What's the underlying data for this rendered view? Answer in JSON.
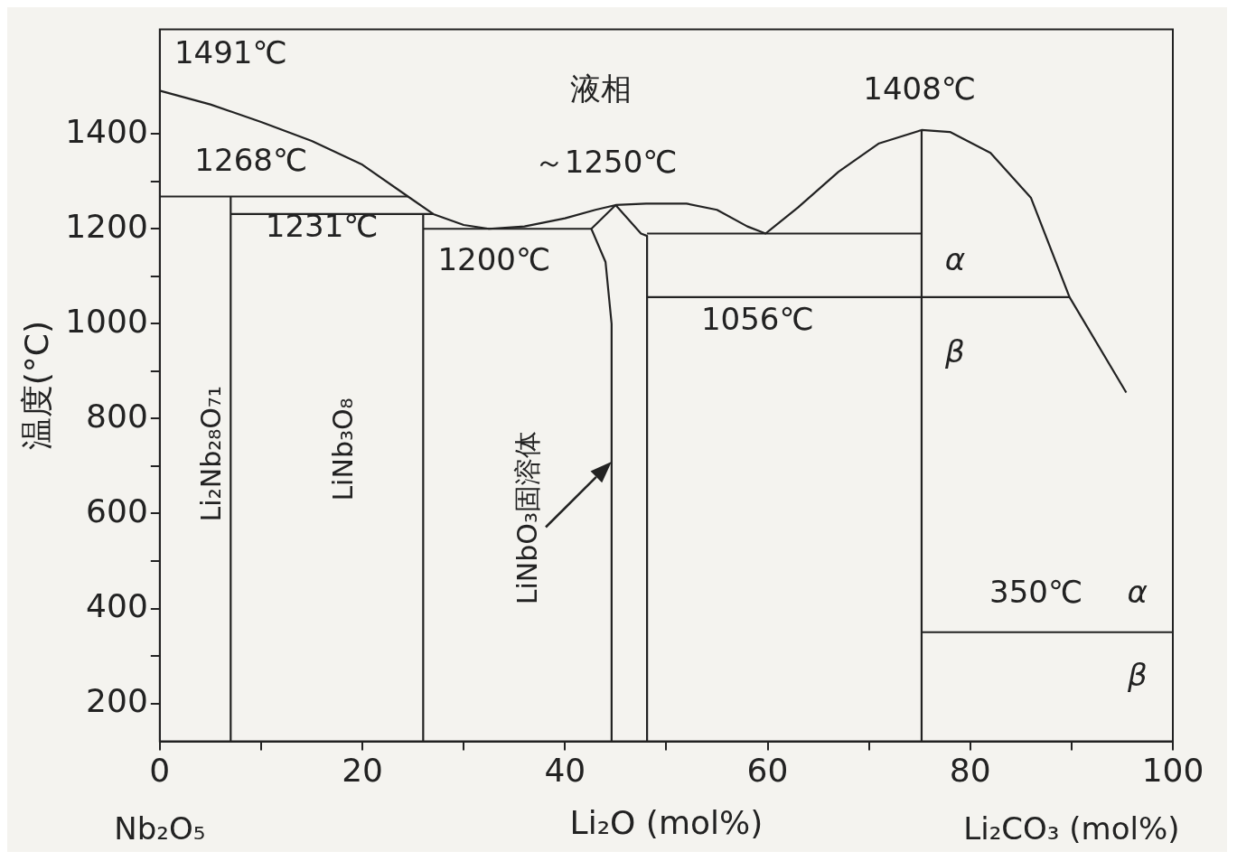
{
  "chart_data": {
    "type": "line",
    "xlabel": "Li₂O (mol%)",
    "ylabel": "温度(°C)",
    "marker": "none",
    "line_style": "solid",
    "xlim": [
      0,
      100
    ],
    "ylim": [
      120,
      1620
    ],
    "xticks": [
      0,
      {
        "value": 10,
        "label": null
      },
      20,
      {
        "value": 30,
        "label": null
      },
      40,
      {
        "value": 50,
        "label": null
      },
      60,
      {
        "value": 70,
        "label": null
      },
      80,
      {
        "value": 90,
        "label": null
      },
      100
    ],
    "yticks": [
      200,
      {
        "value": 300,
        "label": null
      },
      400,
      {
        "value": 500,
        "label": null
      },
      600,
      {
        "value": 700,
        "label": null
      },
      800,
      {
        "value": 900,
        "label": null
      },
      1000,
      {
        "value": 1100,
        "label": null
      },
      1200,
      {
        "value": 1300,
        "label": null
      },
      1400
    ],
    "series": [
      {
        "color": "#222222",
        "x": [
          0,
          5,
          10,
          15,
          20,
          24.5,
          27,
          30,
          32.5,
          36,
          40,
          43,
          45,
          48,
          52,
          55,
          58,
          59.8,
          63,
          67,
          71,
          75.2,
          78,
          82,
          86,
          89.8,
          95.4
        ],
        "values": [
          1491,
          1462,
          1425,
          1385,
          1335,
          1268,
          1231,
          1208,
          1200,
          1205,
          1222,
          1240,
          1250,
          1253,
          1253,
          1240,
          1205,
          1190,
          1245,
          1320,
          1380,
          1408,
          1404,
          1360,
          1265,
          1056,
          855
        ]
      },
      {
        "color": "#222222",
        "x": [
          0,
          24.5
        ],
        "values": [
          1268,
          1268
        ]
      },
      {
        "color": "#222222",
        "x": [
          7,
          7
        ],
        "values": [
          120,
          1268
        ]
      },
      {
        "color": "#222222",
        "x": [
          7,
          27
        ],
        "values": [
          1231,
          1231
        ]
      },
      {
        "color": "#222222",
        "x": [
          26,
          26
        ],
        "values": [
          120,
          1231
        ]
      },
      {
        "color": "#222222",
        "x": [
          26,
          42.6
        ],
        "values": [
          1200,
          1200
        ]
      },
      {
        "color": "#222222",
        "x": [
          45,
          42.6,
          44,
          44.6,
          44.6
        ],
        "values": [
          1250,
          1200,
          1130,
          1000,
          120
        ]
      },
      {
        "color": "#222222",
        "x": [
          45,
          47.5,
          48.1,
          48.1
        ],
        "values": [
          1250,
          1190,
          1185,
          120
        ]
      },
      {
        "color": "#222222",
        "x": [
          48.1,
          75.2
        ],
        "values": [
          1190,
          1190
        ]
      },
      {
        "color": "#222222",
        "x": [
          48.1,
          89.8
        ],
        "values": [
          1056,
          1056
        ]
      },
      {
        "color": "#222222",
        "x": [
          75.2,
          75.2
        ],
        "values": [
          120,
          1408
        ]
      },
      {
        "color": "#222222",
        "x": [
          75.2,
          100
        ],
        "values": [
          350,
          350
        ]
      }
    ],
    "annotations": [
      "1491℃",
      "液相",
      "1408℃",
      "1268℃",
      "～1250℃",
      "1231℃",
      "1200℃",
      "1056℃",
      "α",
      "β",
      "350℃",
      "α",
      "β",
      "Li₂Nb₂₈O₇₁",
      "LiNb₃O₈",
      {
        "text": "LiNbO₃固溶体",
        "x": 44.6,
        "y": 710
      },
      "Nb₂O₅",
      "Li₂CO₃ (mol%)"
    ]
  }
}
